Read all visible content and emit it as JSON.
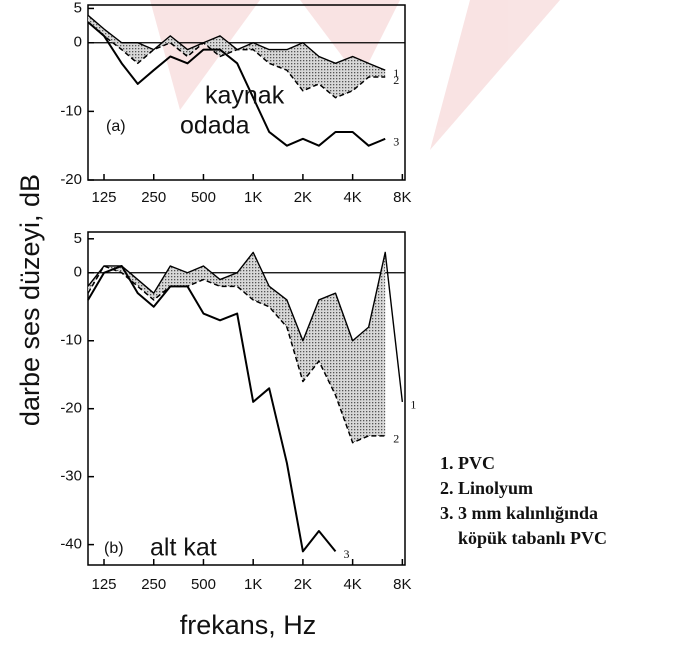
{
  "y_label": "darbe ses düzeyi, dB",
  "x_label": "frekans, Hz",
  "legend": [
    "1. PVC",
    "2. Linolyum",
    "3. 3 mm kalınlığında",
    "köpük tabanlı PVC"
  ],
  "chart_data": [
    {
      "type": "line",
      "log_x": true,
      "zero_line": true,
      "shade_between": [
        0,
        1
      ],
      "annotations": [
        "(a)",
        "kaynak",
        "odada"
      ],
      "x": [
        100,
        125,
        160,
        200,
        250,
        315,
        400,
        500,
        630,
        800,
        1000,
        1250,
        1600,
        2000,
        2500,
        3150,
        4000,
        5000,
        6300
      ],
      "xlim": [
        100,
        8300
      ],
      "xticks": [
        125,
        250,
        500,
        {
          "value": 1000,
          "label": "1K"
        },
        {
          "value": 2000,
          "label": "2K"
        },
        {
          "value": 4000,
          "label": "4K"
        },
        {
          "value": 8000,
          "label": "8K"
        }
      ],
      "ylim": [
        -20,
        5.5
      ],
      "yticks": [
        5,
        0,
        -10,
        -20
      ],
      "series": [
        {
          "end_label": "1",
          "color": "#000000",
          "style": "thin",
          "values": [
            4,
            2,
            0,
            0,
            -1,
            1,
            -1,
            0,
            1,
            -1,
            0,
            -1,
            -1,
            0,
            -2,
            -3,
            -2,
            -3,
            -4
          ]
        },
        {
          "end_label": "2",
          "color": "#000000",
          "style": "dashed",
          "values": [
            3,
            1,
            -1,
            -3,
            -1,
            0,
            -2,
            0,
            -2,
            -1,
            -1,
            -3,
            -4,
            -7,
            -6,
            -8,
            -7,
            -5,
            -5
          ]
        },
        {
          "end_label": "3",
          "color": "#000000",
          "style": "solid",
          "values": [
            3,
            1,
            -3,
            -6,
            -4,
            -2,
            -3,
            -1,
            -1,
            -3,
            -8,
            -13,
            -15,
            -14,
            -15,
            -13,
            -13,
            -15,
            -14
          ]
        }
      ]
    },
    {
      "type": "line",
      "log_x": true,
      "zero_line": true,
      "shade_between": [
        0,
        1
      ],
      "annotations": [
        "(b)",
        "alt kat"
      ],
      "x": [
        100,
        125,
        160,
        200,
        250,
        315,
        400,
        500,
        630,
        800,
        1000,
        1250,
        1600,
        2000,
        2500,
        3150,
        4000,
        5000,
        6300,
        8000
      ],
      "xlim": [
        100,
        8300
      ],
      "xticks": [
        125,
        250,
        500,
        {
          "value": 1000,
          "label": "1K"
        },
        {
          "value": 2000,
          "label": "2K"
        },
        {
          "value": 4000,
          "label": "4K"
        },
        {
          "value": 8000,
          "label": "8K"
        }
      ],
      "ylim": [
        -43,
        6
      ],
      "yticks": [
        5,
        0,
        -10,
        -20,
        -30,
        -40
      ],
      "series": [
        {
          "end_label": "1",
          "color": "#000000",
          "style": "thin",
          "values": [
            -2,
            1,
            1,
            -1,
            -3,
            1,
            0,
            1,
            -1,
            0,
            3,
            -2,
            -4,
            -10,
            -4,
            -3,
            -10,
            -8,
            3,
            -19
          ]
        },
        {
          "end_label": "2",
          "color": "#000000",
          "style": "dashed",
          "values": [
            -3,
            1,
            0,
            -2,
            -4,
            -2,
            -2,
            -1,
            -2,
            -2,
            -4,
            -5,
            -8,
            -16,
            -13,
            -18,
            -25,
            -24,
            -24,
            null
          ]
        },
        {
          "end_label": "3",
          "color": "#000000",
          "style": "solid",
          "values": [
            -4,
            0,
            1,
            -3,
            -5,
            -2,
            -2,
            -6,
            -7,
            -6,
            -19,
            -17,
            -28,
            -41,
            -38,
            -41,
            null,
            null,
            null,
            null
          ]
        }
      ]
    }
  ]
}
